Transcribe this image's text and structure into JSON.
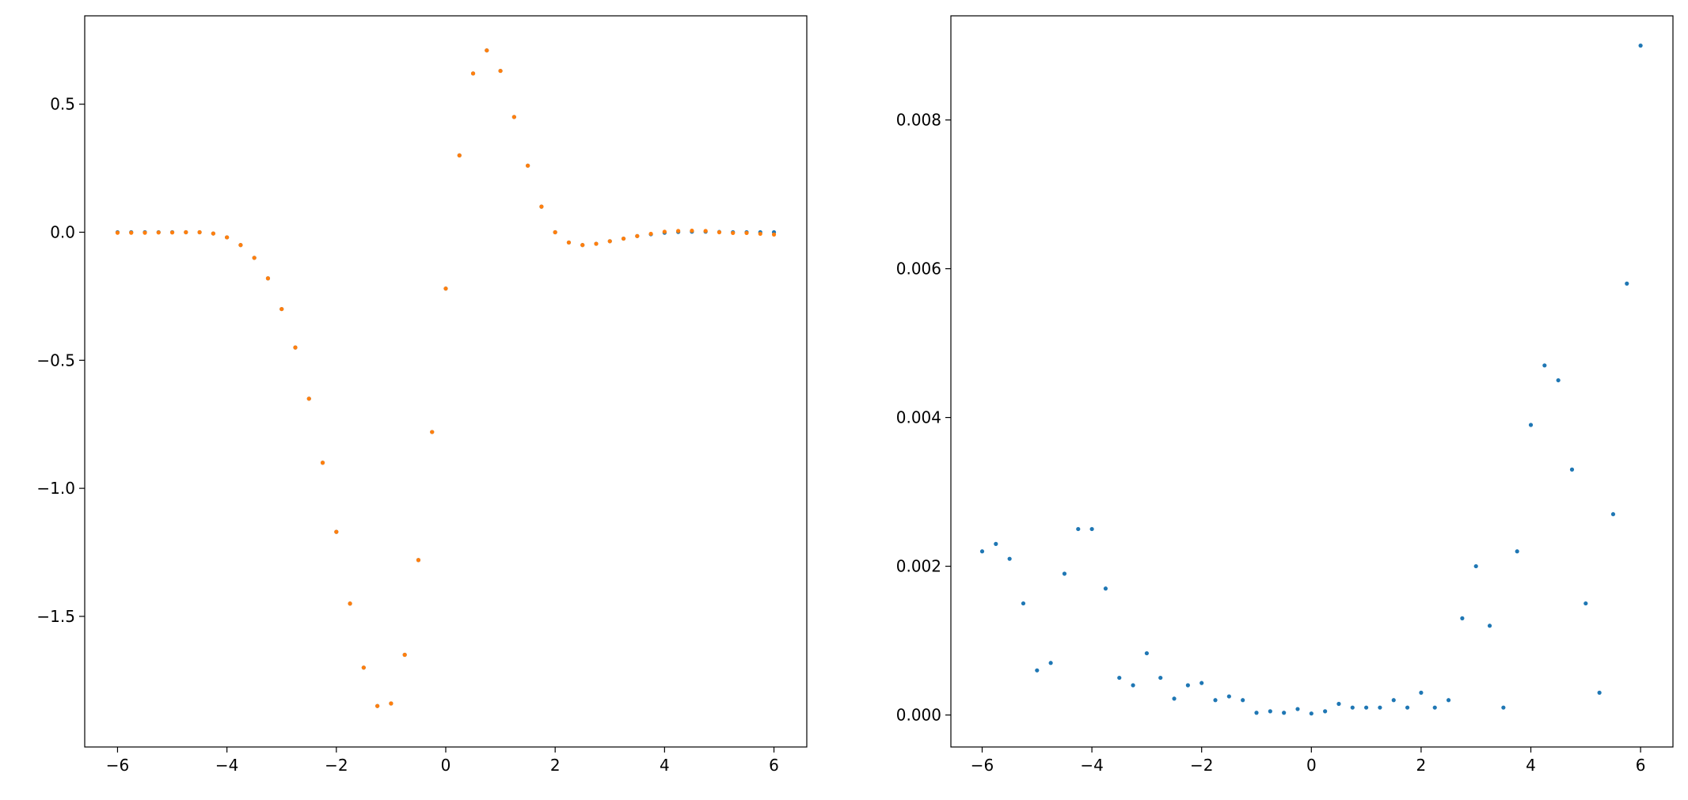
{
  "chart_data": [
    {
      "type": "scatter",
      "x": [
        -6,
        -5.75,
        -5.5,
        -5.25,
        -5,
        -4.75,
        -4.5,
        -4.25,
        -4,
        -3.75,
        -3.5,
        -3.25,
        -3,
        -2.75,
        -2.5,
        -2.25,
        -2,
        -1.75,
        -1.5,
        -1.25,
        -1,
        -0.75,
        -0.5,
        -0.25,
        0,
        0.25,
        0.5,
        0.75,
        1,
        1.25,
        1.5,
        1.75,
        2,
        2.25,
        2.5,
        2.75,
        3,
        3.25,
        3.5,
        3.75,
        4,
        4.25,
        4.5,
        4.75,
        5,
        5.25,
        5.5,
        5.75,
        6
      ],
      "series": [
        {
          "color": "#1f77b4",
          "values": [
            0,
            0,
            0,
            0,
            0,
            0,
            0,
            -0.005,
            -0.02,
            -0.05,
            -0.1,
            -0.18,
            -0.3,
            -0.45,
            -0.65,
            -0.9,
            -1.17,
            -1.45,
            -1.7,
            -1.85,
            -1.84,
            -1.65,
            -1.28,
            -0.78,
            -0.22,
            0.3,
            0.62,
            0.71,
            0.63,
            0.45,
            0.26,
            0.1,
            0.0,
            -0.04,
            -0.05,
            -0.045,
            -0.035,
            -0.025,
            -0.015,
            -0.008,
            -0.002,
            0.001,
            0.002,
            0.002,
            0.001,
            0,
            0,
            0,
            0
          ]
        },
        {
          "color": "#ff7f0e",
          "values": [
            -0.002,
            -0.002,
            -0.002,
            -0.001,
            -0.001,
            0,
            0,
            -0.005,
            -0.02,
            -0.05,
            -0.1,
            -0.18,
            -0.3,
            -0.45,
            -0.65,
            -0.9,
            -1.17,
            -1.45,
            -1.7,
            -1.85,
            -1.84,
            -1.65,
            -1.28,
            -0.78,
            -0.22,
            0.3,
            0.62,
            0.71,
            0.63,
            0.45,
            0.26,
            0.1,
            0.0,
            -0.04,
            -0.05,
            -0.045,
            -0.035,
            -0.025,
            -0.015,
            -0.006,
            0.002,
            0.005,
            0.006,
            0.005,
            0.0,
            -0.003,
            -0.003,
            -0.006,
            -0.009
          ]
        }
      ],
      "xlim": [
        -6.6,
        6.6
      ],
      "xticks": [
        {
          "value": -6,
          "label": "−6"
        },
        {
          "value": -4,
          "label": "−4"
        },
        {
          "value": -2,
          "label": "−2"
        },
        0,
        2,
        4,
        6
      ],
      "ylim": [
        -2.01,
        0.845
      ],
      "yticks": [
        {
          "value": -1.5,
          "label": "−1.5"
        },
        {
          "value": -1.0,
          "label": "−1.0"
        },
        {
          "value": -0.5,
          "label": "−0.5"
        },
        {
          "value": 0,
          "label": "0.0"
        },
        0.5
      ]
    },
    {
      "type": "scatter",
      "x": [
        -6,
        -5.75,
        -5.5,
        -5.25,
        -5,
        -4.75,
        -4.5,
        -4.25,
        -4,
        -3.75,
        -3.5,
        -3.25,
        -3,
        -2.75,
        -2.5,
        -2.25,
        -2,
        -1.75,
        -1.5,
        -1.25,
        -1,
        -0.75,
        -0.5,
        -0.25,
        0,
        0.25,
        0.5,
        0.75,
        1,
        1.25,
        1.5,
        1.75,
        2,
        2.25,
        2.5,
        2.75,
        3,
        3.25,
        3.5,
        3.75,
        4,
        4.25,
        4.5,
        4.75,
        5,
        5.25,
        5.5,
        5.75,
        6
      ],
      "series": [
        {
          "color": "#1f77b4",
          "values": [
            0.0022,
            0.0023,
            0.0021,
            0.0015,
            0.0006,
            0.0007,
            0.0019,
            0.0025,
            0.0025,
            0.0017,
            0.0005,
            0.0004,
            0.00083,
            0.0005,
            0.00022,
            0.0004,
            0.00043,
            0.0002,
            0.00025,
            0.0002,
            3e-05,
            5e-05,
            3e-05,
            8e-05,
            2e-05,
            5e-05,
            0.00015,
            0.0001,
            0.0001,
            0.0001,
            0.0002,
            0.0001,
            0.0003,
            0.0001,
            0.0002,
            0.0013,
            0.002,
            0.0012,
            0.0001,
            0.0022,
            0.0039,
            0.0047,
            0.0045,
            0.0033,
            0.0015,
            0.0003,
            0.0027,
            0.0058,
            0.009
          ]
        }
      ],
      "xlim": [
        -6.57,
        6.59
      ],
      "xticks": [
        {
          "value": -6,
          "label": "−6"
        },
        {
          "value": -4,
          "label": "−4"
        },
        {
          "value": -2,
          "label": "−2"
        },
        0,
        2,
        4,
        6
      ],
      "ylim": [
        -0.00043,
        0.0094
      ],
      "yticks": [
        {
          "value": 0,
          "label": "0.000"
        },
        {
          "value": 0.002,
          "label": "0.002"
        },
        {
          "value": 0.004,
          "label": "0.004"
        },
        {
          "value": 0.006,
          "label": "0.006"
        },
        {
          "value": 0.008,
          "label": "0.008"
        }
      ]
    }
  ]
}
